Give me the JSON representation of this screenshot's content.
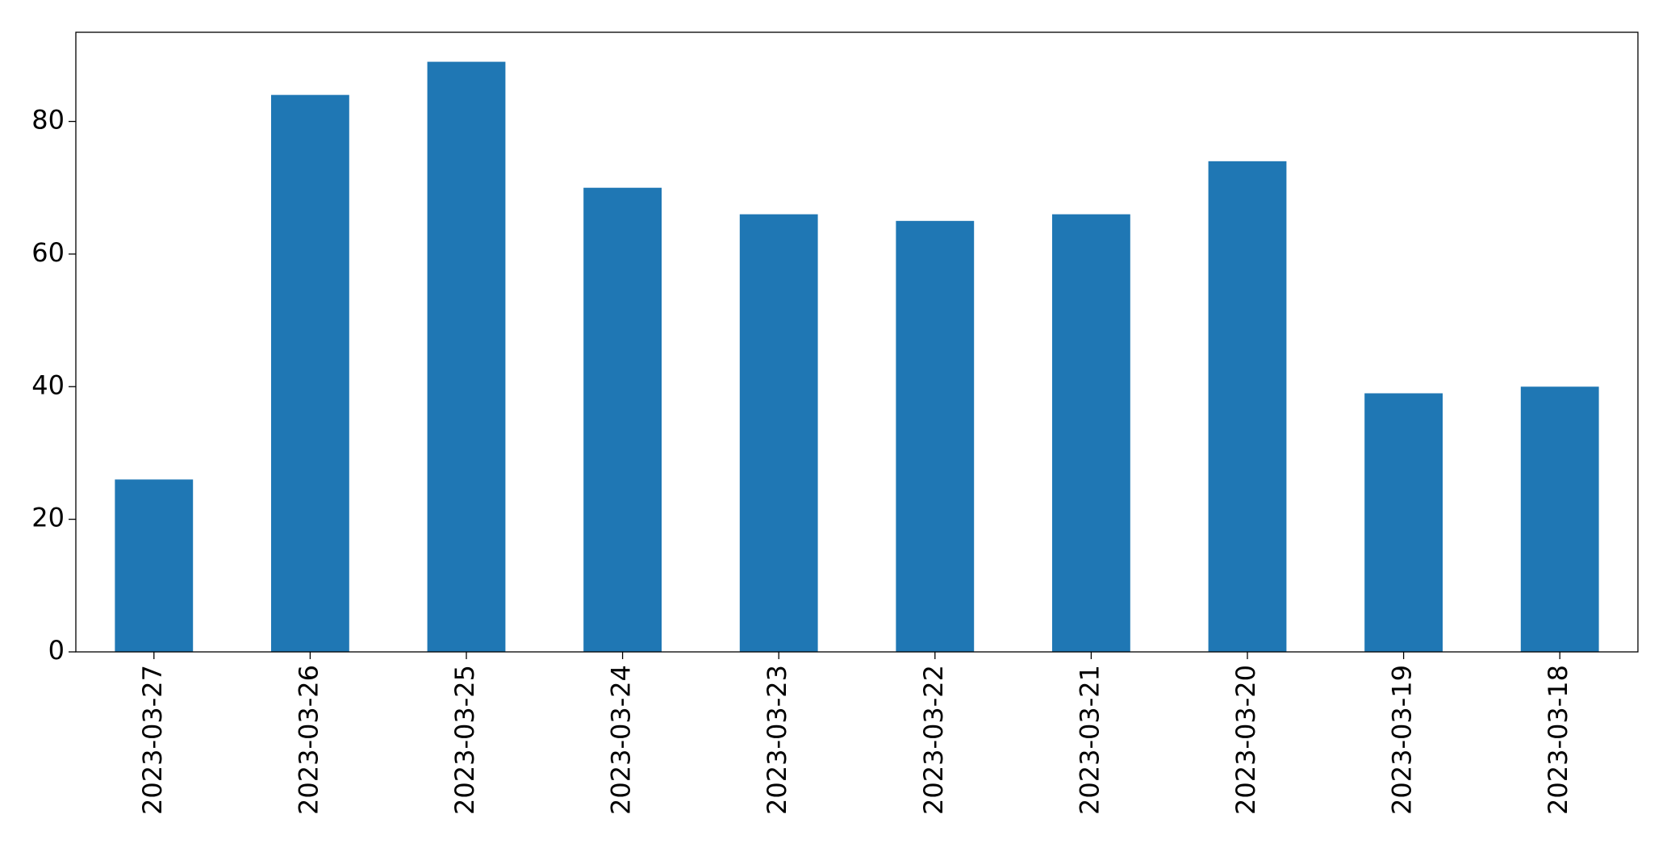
{
  "chart_data": {
    "type": "bar",
    "categories": [
      "2023-03-27",
      "2023-03-26",
      "2023-03-25",
      "2023-03-24",
      "2023-03-23",
      "2023-03-22",
      "2023-03-21",
      "2023-03-20",
      "2023-03-19",
      "2023-03-18"
    ],
    "values": [
      26,
      84,
      89,
      70,
      66,
      65,
      66,
      74,
      39,
      40
    ],
    "color": "#1f77b4",
    "ylim": [
      0,
      93.45
    ],
    "yticks": [
      0,
      20,
      40,
      60,
      80
    ],
    "grid": false
  }
}
